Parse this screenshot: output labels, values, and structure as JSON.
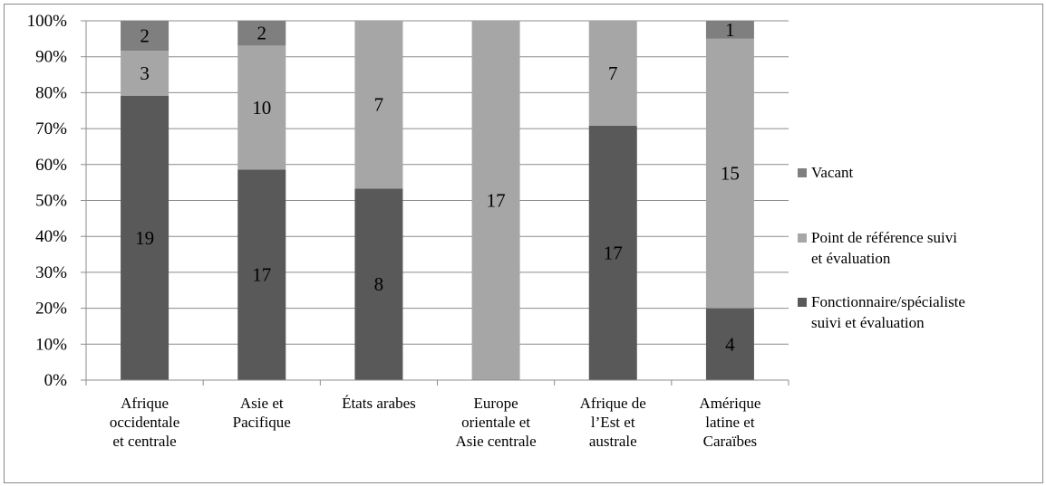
{
  "chart_data": {
    "type": "bar",
    "stacked": "percent",
    "categories": [
      "Afrique occidentale et centrale",
      "Asie et Pacifique",
      "États arabes",
      "Europe orientale et Asie centrale",
      "Afrique de l’Est et australe",
      "Amérique latine et Caraïbes"
    ],
    "category_lines": [
      [
        "Afrique",
        "occidentale",
        "et centrale"
      ],
      [
        "Asie et",
        "Pacifique"
      ],
      [
        "États arabes"
      ],
      [
        "Europe",
        "orientale et",
        "Asie centrale"
      ],
      [
        "Afrique de",
        "l’Est et",
        "australe"
      ],
      [
        "Amérique",
        "latine et",
        "Caraïbes"
      ]
    ],
    "series": [
      {
        "name": "Fonctionnaire/spécialiste suivi et évaluation",
        "legend_lines": [
          "Fonctionnaire/spécialiste",
          "suivi et évaluation"
        ],
        "color": "#595959",
        "values": [
          19,
          17,
          8,
          0,
          17,
          4
        ]
      },
      {
        "name": "Point de référence suivi et évaluation",
        "legend_lines": [
          "Point de référence suivi",
          "et évaluation"
        ],
        "color": "#a6a6a6",
        "values": [
          3,
          10,
          7,
          17,
          7,
          15
        ]
      },
      {
        "name": "Vacant",
        "legend_lines": [
          "Vacant"
        ],
        "color": "#7f7f7f",
        "values": [
          2,
          2,
          0,
          0,
          0,
          1
        ]
      }
    ],
    "yticks": [
      "0%",
      "10%",
      "20%",
      "30%",
      "40%",
      "50%",
      "60%",
      "70%",
      "80%",
      "90%",
      "100%"
    ],
    "ylim": [
      0,
      100
    ],
    "grid": true,
    "legend_position": "right",
    "data_labels": true
  }
}
